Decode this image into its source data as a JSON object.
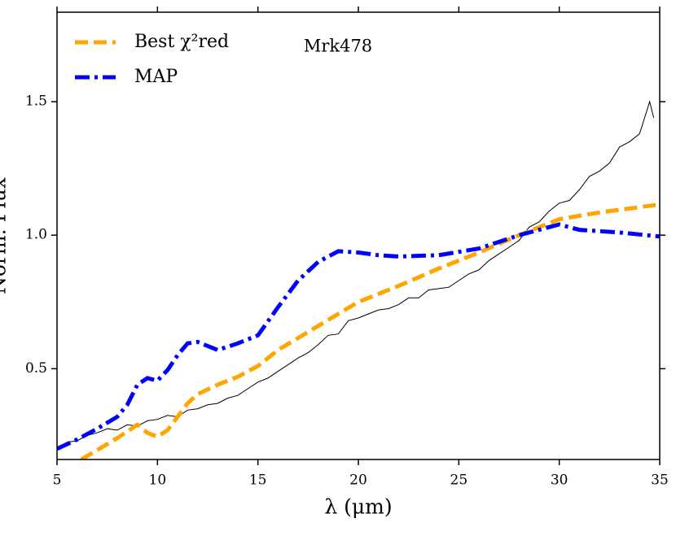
{
  "chart_data": {
    "type": "line",
    "annotation": "Mrk478",
    "xlabel": "λ (μm)",
    "ylabel": "Norm. Flux",
    "xlim": [
      5,
      35
    ],
    "ylim": [
      0.16,
      1.835
    ],
    "xticks": [
      5,
      10,
      15,
      20,
      25,
      30,
      35
    ],
    "yticks": [
      0.5,
      {
        "value": 1,
        "label": "1.0"
      },
      1.5
    ],
    "legend": "upper left",
    "series": [
      {
        "color": "#000000",
        "linestyle": "solid",
        "linewidth": 1,
        "x": [
          5,
          5.5,
          6,
          6.5,
          7,
          7.5,
          8,
          8.5,
          9,
          9.5,
          10,
          10.5,
          11,
          11.5,
          12,
          12.5,
          13,
          13.5,
          14,
          14.5,
          15,
          15.5,
          16,
          16.5,
          17,
          17.5,
          18,
          18.5,
          19,
          19.5,
          20,
          20.5,
          21,
          21.5,
          22,
          22.5,
          23,
          23.5,
          24,
          24.5,
          25,
          25.5,
          26,
          26.5,
          27,
          27.5,
          28,
          28.5,
          29,
          29.5,
          30,
          30.5,
          31,
          31.5,
          32,
          32.5,
          33,
          33.5,
          34,
          34.5,
          34.7
        ],
        "values": [
          0.2,
          0.225,
          0.23,
          0.25,
          0.26,
          0.275,
          0.27,
          0.29,
          0.285,
          0.305,
          0.31,
          0.325,
          0.32,
          0.345,
          0.35,
          0.365,
          0.37,
          0.39,
          0.4,
          0.425,
          0.45,
          0.465,
          0.49,
          0.515,
          0.54,
          0.56,
          0.59,
          0.625,
          0.63,
          0.68,
          0.69,
          0.705,
          0.72,
          0.725,
          0.74,
          0.765,
          0.765,
          0.795,
          0.8,
          0.805,
          0.83,
          0.855,
          0.87,
          0.905,
          0.93,
          0.955,
          0.98,
          1.03,
          1.05,
          1.09,
          1.12,
          1.13,
          1.17,
          1.22,
          1.24,
          1.27,
          1.33,
          1.35,
          1.38,
          1.5,
          1.44
        ]
      },
      {
        "name": "Best χ²red",
        "color": "#ffa500",
        "linestyle": "dashed",
        "linewidth": 5,
        "x": [
          6.2,
          7,
          8,
          9,
          9.5,
          10,
          10.5,
          11,
          11.5,
          12,
          13,
          14,
          15,
          16,
          17,
          18,
          19,
          20,
          22,
          24,
          26,
          28,
          30,
          32,
          35
        ],
        "values": [
          0.16,
          0.195,
          0.24,
          0.29,
          0.26,
          0.245,
          0.27,
          0.32,
          0.37,
          0.405,
          0.44,
          0.47,
          0.51,
          0.57,
          0.615,
          0.66,
          0.705,
          0.75,
          0.81,
          0.875,
          0.935,
          1.0,
          1.06,
          1.085,
          1.115
        ]
      },
      {
        "name": "MAP",
        "color": "#0000ff",
        "linestyle": "dashdot",
        "linewidth": 5,
        "x": [
          5,
          6,
          7,
          8,
          8.5,
          9,
          9.5,
          10,
          10.5,
          11,
          11.5,
          12,
          13,
          14,
          15,
          16,
          17,
          18,
          19,
          20,
          21,
          22,
          24,
          26,
          28,
          30,
          31,
          33,
          35
        ],
        "values": [
          0.2,
          0.235,
          0.275,
          0.32,
          0.365,
          0.44,
          0.465,
          0.455,
          0.495,
          0.55,
          0.595,
          0.6,
          0.57,
          0.595,
          0.625,
          0.73,
          0.83,
          0.9,
          0.94,
          0.935,
          0.925,
          0.92,
          0.925,
          0.95,
          1.0,
          1.04,
          1.02,
          1.01,
          0.995
        ]
      }
    ]
  }
}
